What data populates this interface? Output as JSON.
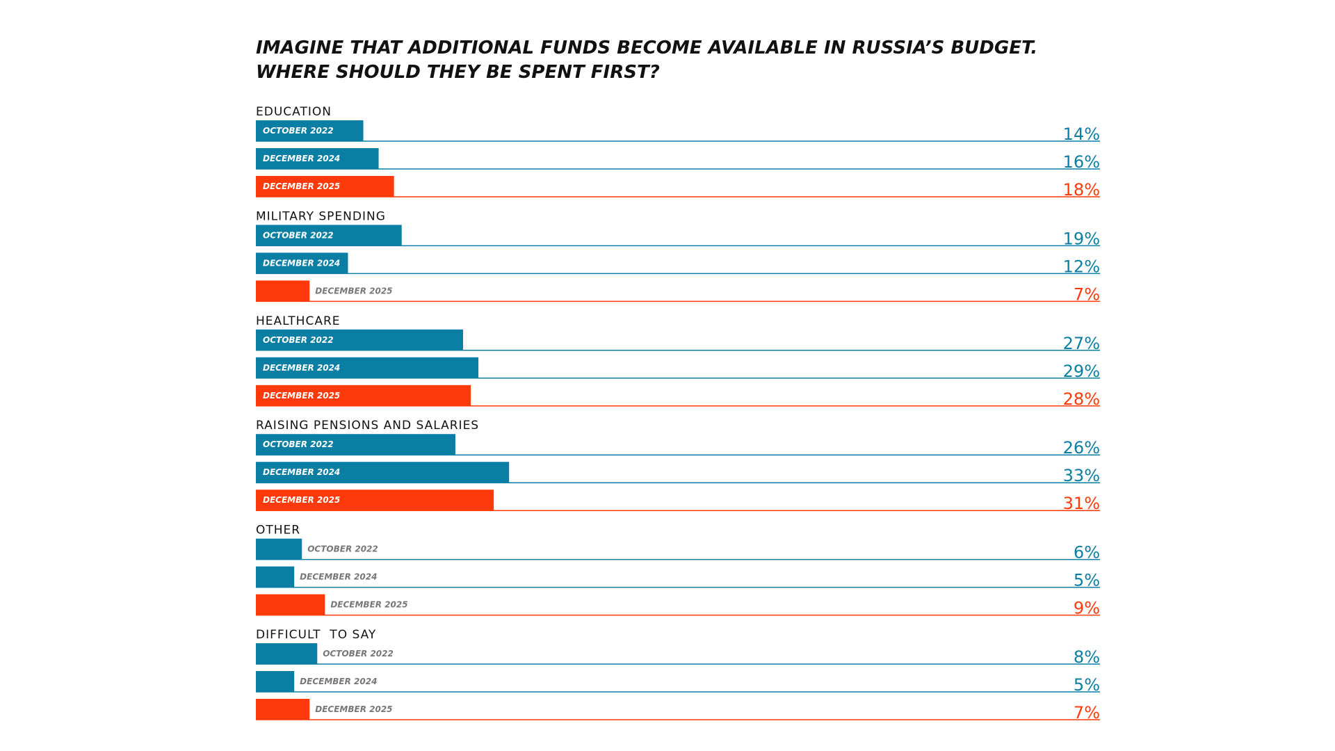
{
  "chart_data": {
    "type": "grouped-bar",
    "title": "IMAGINE THAT ADDITIONAL FUNDS BECOME AVAILABLE IN RUSSIA’S BUDGET.\nWHERE SHOULD THEY BE SPENT FIRST?",
    "categories": [
      "EDUCATION",
      "MILITARY SPENDING",
      "HEALTHCARE",
      "RAISING PENSIONS AND SALARIES",
      "OTHER",
      "DIFFICULT  TO SAY"
    ],
    "series": [
      {
        "name": "OCTOBER 2022",
        "color": "#0b7ea3",
        "values": [
          14,
          19,
          27,
          26,
          6,
          8
        ],
        "value_labels": [
          "14%",
          "19%",
          "27%",
          "26%",
          "6%",
          "8%"
        ]
      },
      {
        "name": "DECEMBER 2024",
        "color": "#0b7ea3",
        "values": [
          16,
          12,
          29,
          33,
          5,
          5
        ],
        "value_labels": [
          "16%",
          "12%",
          "29%",
          "33%",
          "5%",
          "5%"
        ]
      },
      {
        "name": "DECEMBER 2025",
        "color": "#ff3a0a",
        "values": [
          18,
          7,
          28,
          31,
          9,
          7
        ],
        "value_labels": [
          "18%",
          "7%",
          "28%",
          "31%",
          "9%",
          "7%"
        ]
      }
    ],
    "xlim": [
      0,
      110
    ]
  }
}
